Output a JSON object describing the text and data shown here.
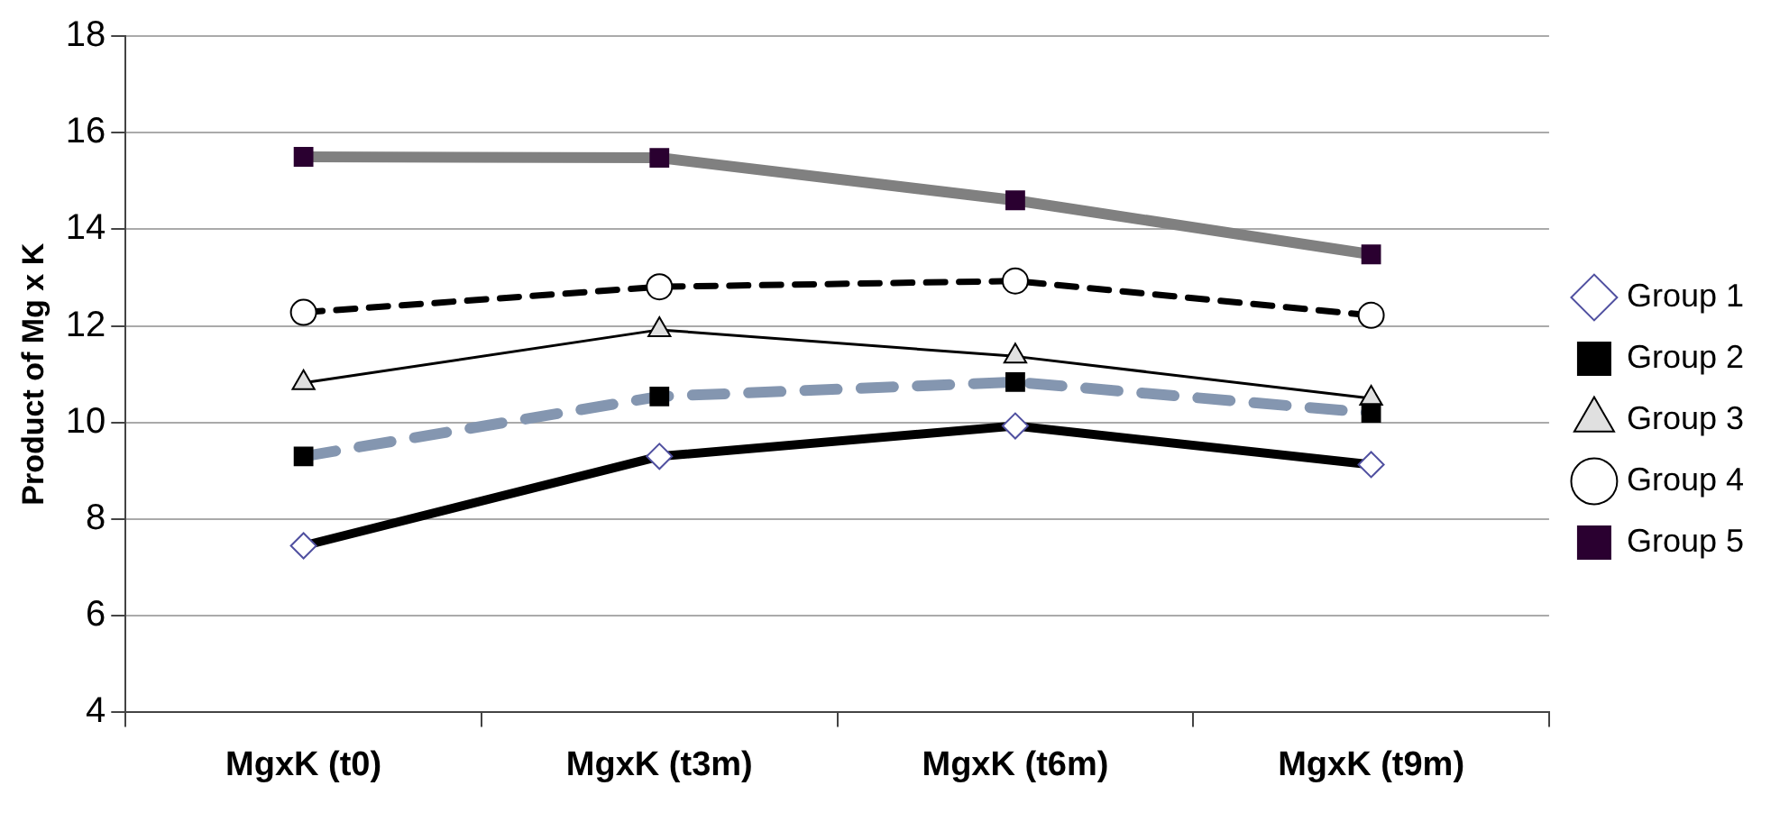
{
  "chart_data": {
    "type": "line",
    "ylabel": "Product of Mg x K",
    "categories": [
      "MgxK (t0)",
      "MgxK (t3m)",
      "MgxK (t6m)",
      "MgxK (t9m)"
    ],
    "series": [
      {
        "name": "Group 1",
        "color": "#000000",
        "marker": "diamond",
        "line_style": "solid",
        "values": [
          7.45,
          9.3,
          9.93,
          9.13
        ]
      },
      {
        "name": "Group 2",
        "color": "#8496b0",
        "marker": "square",
        "line_style": "dashed",
        "values": [
          9.3,
          10.54,
          10.84,
          10.2
        ]
      },
      {
        "name": "Group 3",
        "color": "#000000",
        "marker": "triangle",
        "line_style": "solid",
        "values": [
          10.82,
          11.92,
          11.37,
          10.5
        ]
      },
      {
        "name": "Group 4",
        "color": "#000000",
        "marker": "circle",
        "line_style": "dashed",
        "values": [
          12.28,
          12.81,
          12.93,
          12.22
        ]
      },
      {
        "name": "Group 5",
        "color": "#808080",
        "marker": "square",
        "line_style": "solid",
        "values": [
          15.5,
          15.48,
          14.6,
          13.48
        ]
      }
    ],
    "ylim": [
      4,
      18
    ],
    "yticks": [
      4,
      6,
      8,
      10,
      12,
      14,
      16,
      18
    ],
    "grid": "y",
    "legend": "right"
  }
}
